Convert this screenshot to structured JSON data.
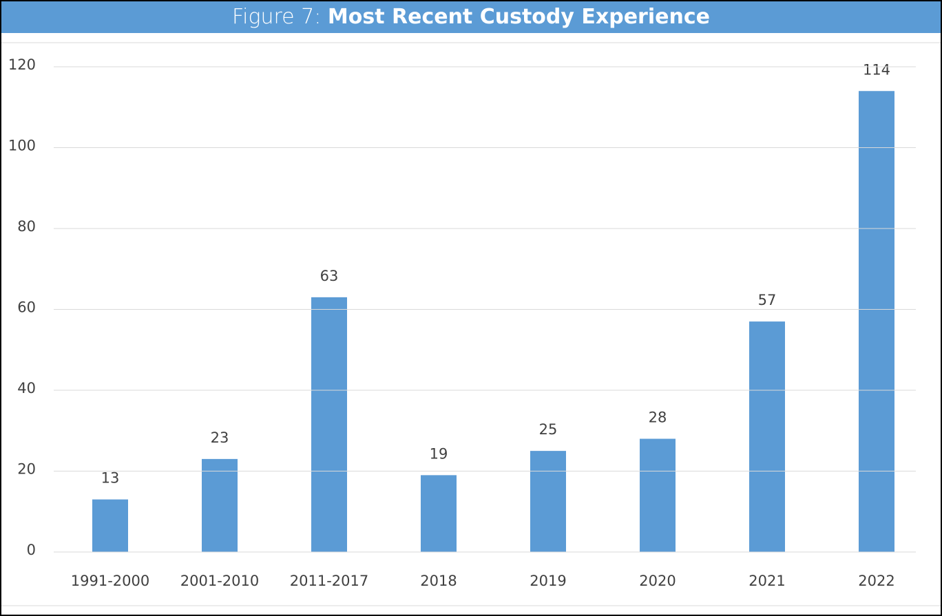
{
  "chart_data": {
    "type": "bar",
    "figure_label": "Figure 7:",
    "title": "Most Recent Custody Experience",
    "categories": [
      "1991-2000",
      "2001-2010",
      "2011-2017",
      "2018",
      "2019",
      "2020",
      "2021",
      "2022"
    ],
    "values": [
      13,
      23,
      63,
      19,
      25,
      28,
      57,
      114
    ],
    "color": "#5b9bd5",
    "ylim": [
      0,
      120
    ],
    "yticks": [
      0,
      20,
      40,
      60,
      80,
      100,
      120
    ],
    "grid": true
  }
}
